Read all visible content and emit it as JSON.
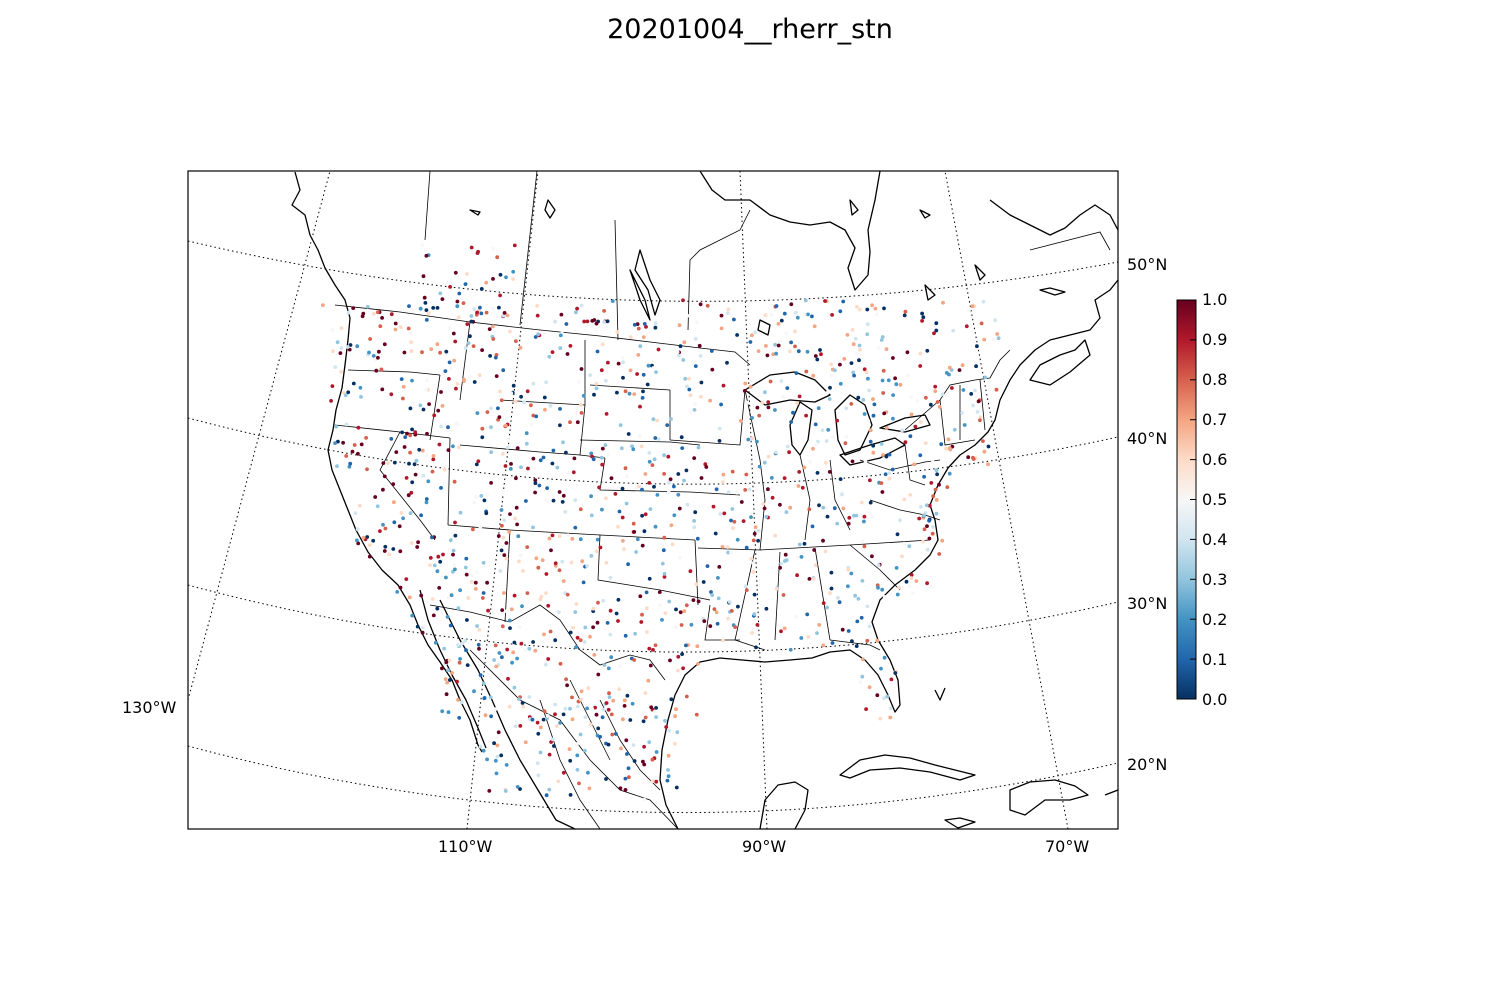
{
  "title": "20201004__rherr_stn",
  "map": {
    "latitude_labels": [
      "50°N",
      "40°N",
      "30°N",
      "20°N"
    ],
    "longitude_labels": [
      "130°W",
      "110°W",
      "90°W",
      "70°W"
    ]
  },
  "colorbar": {
    "ticks": [
      "1.0",
      "0.9",
      "0.8",
      "0.7",
      "0.6",
      "0.5",
      "0.4",
      "0.3",
      "0.2",
      "0.1",
      "0.0"
    ],
    "range": [
      0.0,
      1.0
    ],
    "colors": [
      "#053061",
      "#2166ac",
      "#4393c3",
      "#92c5de",
      "#d1e5f0",
      "#f7f7f7",
      "#fddbc7",
      "#f4a582",
      "#d6604d",
      "#b2182b",
      "#67001f"
    ]
  }
}
